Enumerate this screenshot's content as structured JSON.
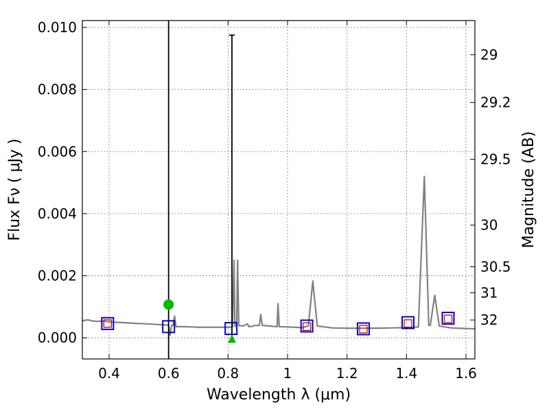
{
  "chart_data": {
    "type": "line",
    "title": "",
    "xlabel": "Wavelength  λ (μm)",
    "ylabel": "Flux  Fν  ( μJy )",
    "y2label": "Magnitude (AB)",
    "xlim": [
      0.31,
      1.63
    ],
    "ylim": [
      -0.00068,
      0.01022
    ],
    "grid": true,
    "x_ticks": [
      0.4,
      0.6,
      0.8,
      1.0,
      1.2,
      1.4,
      1.6
    ],
    "x_tick_labels": [
      "0.4",
      "0.6",
      "0.8",
      "1",
      "1.2",
      "1.4",
      "1.6"
    ],
    "y_ticks": [
      0.0,
      0.002,
      0.004,
      0.006,
      0.008,
      0.01
    ],
    "y_tick_labels": [
      "0.000",
      "0.002",
      "0.004",
      "0.006",
      "0.008",
      "0.010"
    ],
    "y2_ticks": [
      {
        "label": "29",
        "flux": 0.00912
      },
      {
        "label": "29.2",
        "flux": 0.00758
      },
      {
        "label": "29.5",
        "flux": 0.00575
      },
      {
        "label": "30",
        "flux": 0.00363
      },
      {
        "label": "30.5",
        "flux": 0.00229
      },
      {
        "label": "31",
        "flux": 0.00145
      },
      {
        "label": "32",
        "flux": 0.000575
      }
    ],
    "colors": {
      "sed": "#808080",
      "model_marker": "#0000cc",
      "observed_marker": "#cc0000",
      "detection": "#00bb00",
      "errorbar": "#000000",
      "grid": "#555555"
    },
    "series": [
      {
        "kind": "sed",
        "points": [
          [
            0.31,
            0.00055
          ],
          [
            0.33,
            0.00058
          ],
          [
            0.34,
            0.00055
          ],
          [
            0.36,
            0.00053
          ],
          [
            0.38,
            0.00054
          ],
          [
            0.4,
            0.00052
          ],
          [
            0.42,
            0.0005
          ],
          [
            0.45,
            0.00049
          ],
          [
            0.48,
            0.00047
          ],
          [
            0.5,
            0.00046
          ],
          [
            0.53,
            0.00045
          ],
          [
            0.56,
            0.00043
          ],
          [
            0.58,
            0.00042
          ],
          [
            0.6,
            0.00041
          ],
          [
            0.605,
            8e-05
          ],
          [
            0.61,
            0.0004
          ],
          [
            0.615,
            0.00041
          ],
          [
            0.62,
            0.0007
          ],
          [
            0.625,
            0.00036
          ],
          [
            0.65,
            0.00036
          ],
          [
            0.68,
            0.00035
          ],
          [
            0.7,
            0.00034
          ],
          [
            0.74,
            0.00034
          ],
          [
            0.78,
            0.00034
          ],
          [
            0.8,
            0.00034
          ],
          [
            0.815,
            0.00035
          ],
          [
            0.82,
            0.0025
          ],
          [
            0.823,
            0.00037
          ],
          [
            0.829,
            0.00038
          ],
          [
            0.832,
            0.0025
          ],
          [
            0.836,
            0.0004
          ],
          [
            0.85,
            0.00038
          ],
          [
            0.865,
            0.00045
          ],
          [
            0.87,
            0.00036
          ],
          [
            0.88,
            0.00037
          ],
          [
            0.89,
            0.0004
          ],
          [
            0.905,
            0.0004
          ],
          [
            0.91,
            0.00075
          ],
          [
            0.915,
            0.0004
          ],
          [
            0.93,
            0.00039
          ],
          [
            0.95,
            0.00037
          ],
          [
            0.965,
            0.00036
          ],
          [
            0.968,
            0.0011
          ],
          [
            0.972,
            0.00036
          ],
          [
            1.0,
            0.00035
          ],
          [
            1.05,
            0.00033
          ],
          [
            1.07,
            0.00038
          ],
          [
            1.085,
            0.00183
          ],
          [
            1.1,
            0.00038
          ],
          [
            1.15,
            0.00032
          ],
          [
            1.2,
            0.00031
          ],
          [
            1.25,
            0.00031
          ],
          [
            1.3,
            0.00031
          ],
          [
            1.35,
            0.00032
          ],
          [
            1.4,
            0.00033
          ],
          [
            1.44,
            0.00035
          ],
          [
            1.46,
            0.0052
          ],
          [
            1.475,
            0.0004
          ],
          [
            1.48,
            0.0004
          ],
          [
            1.495,
            0.00137
          ],
          [
            1.51,
            0.00038
          ],
          [
            1.55,
            0.00032
          ],
          [
            1.6,
            0.0003
          ],
          [
            1.63,
            0.00029
          ]
        ]
      },
      {
        "kind": "model_photometry",
        "points": [
          [
            0.395,
            0.00046
          ],
          [
            0.6,
            0.00036
          ],
          [
            0.81,
            0.0003
          ],
          [
            1.065,
            0.00038
          ],
          [
            1.255,
            0.00029
          ],
          [
            1.405,
            0.00049
          ],
          [
            1.54,
            0.00063
          ]
        ]
      },
      {
        "kind": "observed_photometry",
        "points": [
          [
            0.395,
            0.00046
          ],
          [
            1.065,
            0.00036
          ],
          [
            1.255,
            0.00028
          ],
          [
            1.405,
            0.00046
          ],
          [
            1.54,
            0.00061
          ]
        ]
      },
      {
        "kind": "detection",
        "points": [
          [
            0.6,
            0.00107
          ]
        ]
      },
      {
        "kind": "upper_limit",
        "points": [
          [
            0.813,
            -5e-05
          ]
        ]
      },
      {
        "kind": "errorbar",
        "items": [
          {
            "x": 0.6,
            "low": -0.00068,
            "high": 0.01022,
            "capped": false
          },
          {
            "x": 0.813,
            "low": -5e-05,
            "high": 0.00975,
            "capped": true
          }
        ]
      }
    ]
  }
}
